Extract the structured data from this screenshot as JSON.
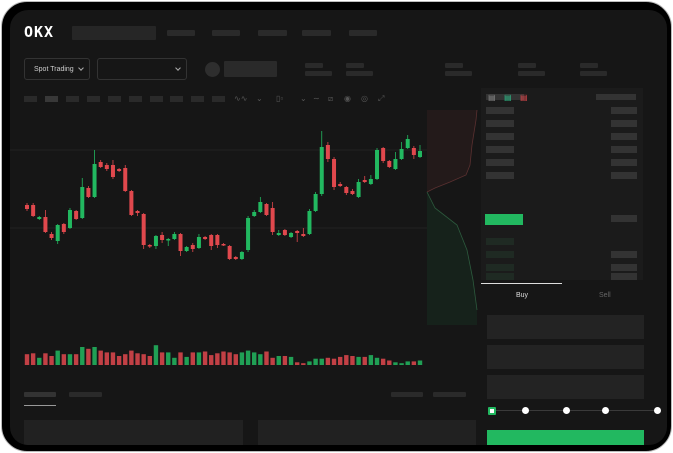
{
  "brand": {
    "logo": "OKX"
  },
  "header": {
    "market_type": "Spot Trading"
  },
  "trade": {
    "tabs": [
      {
        "label": "Buy",
        "active": true
      },
      {
        "label": "Sell",
        "active": false
      }
    ],
    "slider_level": 0
  },
  "colors": {
    "up": "#22b860",
    "down": "#e0484d",
    "background": "#161616",
    "panel": "#1b1b1b"
  },
  "icons": [
    "chevron-down-icon",
    "indicator-icon",
    "draw-line-icon",
    "ruler-icon",
    "camera-icon",
    "settings-icon",
    "fullscreen-icon",
    "orderbook-both-icon",
    "orderbook-buy-icon",
    "orderbook-sell-icon"
  ],
  "chart_data": {
    "type": "candlestick",
    "candles": [
      [
        97,
        99,
        91,
        93
      ],
      [
        97,
        99,
        85,
        86
      ],
      [
        83,
        86,
        82,
        85
      ],
      [
        85,
        92,
        69,
        70
      ],
      [
        68,
        70,
        62,
        64
      ],
      [
        61,
        78,
        58,
        77
      ],
      [
        78,
        79,
        68,
        70
      ],
      [
        74,
        94,
        73,
        92
      ],
      [
        91,
        92,
        82,
        83
      ],
      [
        84,
        124,
        83,
        115
      ],
      [
        114,
        116,
        104,
        105
      ],
      [
        105,
        152,
        104,
        138
      ],
      [
        140,
        142,
        134,
        135
      ],
      [
        137,
        139,
        131,
        133
      ],
      [
        137,
        142,
        123,
        125
      ],
      [
        133,
        134,
        130,
        131
      ],
      [
        134,
        137,
        110,
        111
      ],
      [
        111,
        112,
        86,
        87
      ],
      [
        91,
        92,
        86,
        89
      ],
      [
        88,
        89,
        53,
        57
      ],
      [
        57,
        58,
        54,
        56
      ],
      [
        56,
        67,
        53,
        66
      ],
      [
        67,
        70,
        59,
        62
      ],
      [
        62,
        64,
        56,
        63
      ],
      [
        63,
        70,
        62,
        68
      ],
      [
        68,
        69,
        46,
        51
      ],
      [
        51,
        56,
        50,
        55
      ],
      [
        57,
        59,
        50,
        53
      ],
      [
        54,
        68,
        53,
        65
      ],
      [
        65,
        66,
        62,
        63
      ],
      [
        67,
        68,
        52,
        56
      ],
      [
        67,
        68,
        54,
        57
      ],
      [
        58,
        59,
        56,
        57
      ],
      [
        56,
        57,
        42,
        43
      ],
      [
        45,
        46,
        42,
        43
      ],
      [
        43,
        51,
        42,
        50
      ],
      [
        52,
        86,
        50,
        84
      ],
      [
        86,
        92,
        85,
        90
      ],
      [
        90,
        105,
        89,
        100
      ],
      [
        98,
        99,
        86,
        87
      ],
      [
        94,
        100,
        67,
        70
      ],
      [
        67,
        72,
        66,
        69
      ],
      [
        72,
        73,
        66,
        67
      ],
      [
        65,
        70,
        64,
        69
      ],
      [
        71,
        72,
        60,
        69
      ],
      [
        68,
        74,
        65,
        66
      ],
      [
        68,
        93,
        67,
        91
      ],
      [
        91,
        110,
        90,
        108
      ],
      [
        108,
        171,
        106,
        155
      ],
      [
        157,
        160,
        140,
        143
      ],
      [
        143,
        145,
        112,
        115
      ],
      [
        118,
        120,
        115,
        116
      ],
      [
        115,
        116,
        107,
        109
      ],
      [
        111,
        113,
        107,
        108
      ],
      [
        105,
        123,
        104,
        120
      ],
      [
        122,
        126,
        119,
        120
      ],
      [
        118,
        127,
        117,
        123
      ],
      [
        123,
        154,
        122,
        152
      ],
      [
        154,
        155,
        139,
        141
      ],
      [
        141,
        142,
        134,
        135
      ],
      [
        133,
        150,
        132,
        143
      ],
      [
        143,
        160,
        142,
        153
      ],
      [
        154,
        167,
        153,
        163
      ],
      [
        154,
        156,
        143,
        147
      ],
      [
        145,
        157,
        144,
        151
      ]
    ],
    "volume": [
      12,
      13,
      8,
      13,
      10,
      16,
      12,
      12,
      12,
      20,
      18,
      20,
      16,
      14,
      14,
      10,
      12,
      16,
      13,
      12,
      10,
      22,
      14,
      14,
      8,
      14,
      9,
      14,
      14,
      15,
      11,
      13,
      15,
      14,
      12,
      14,
      16,
      14,
      12,
      15,
      8,
      10,
      10,
      9,
      3,
      2,
      4,
      7,
      7,
      8,
      7,
      9,
      11,
      10,
      9,
      9,
      11,
      8,
      7,
      5,
      3,
      2,
      4,
      4,
      5
    ]
  }
}
